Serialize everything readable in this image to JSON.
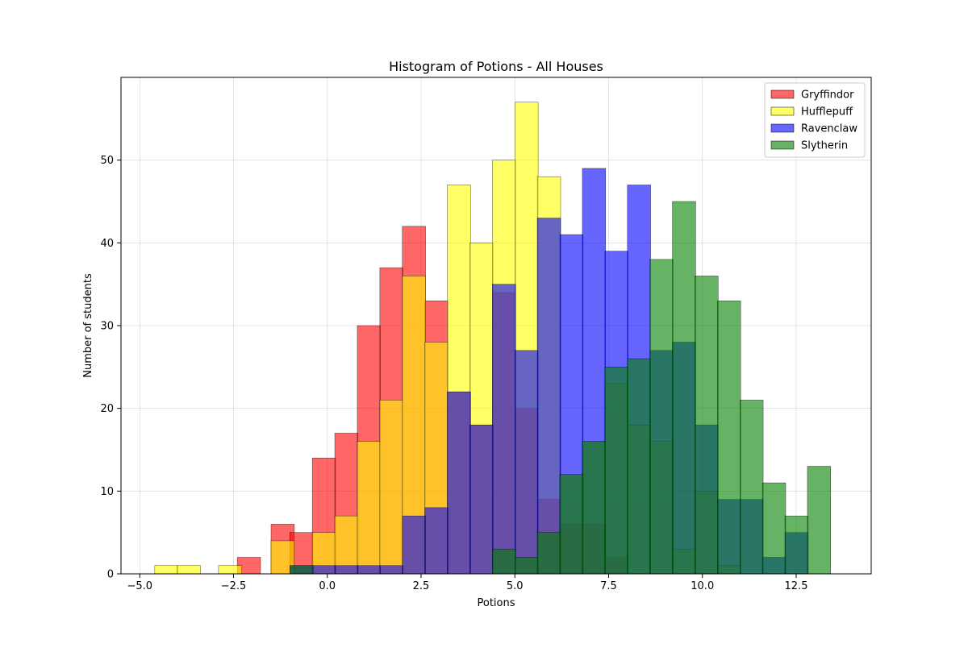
{
  "chart_data": {
    "type": "bar",
    "title": "Histogram of Potions - All Houses",
    "xlabel": "Potions",
    "ylabel": "Number of students",
    "xlim": [
      -5.5,
      14.5
    ],
    "ylim": [
      0,
      60
    ],
    "bin_width": 0.62,
    "grid": true,
    "legend_position": "top-right",
    "xticks": [
      -5.0,
      -2.5,
      0.0,
      2.5,
      5.0,
      7.5,
      10.0,
      12.5
    ],
    "xtick_labels": [
      "−5.0",
      "−2.5",
      "0.0",
      "2.5",
      "5.0",
      "7.5",
      "10.0",
      "12.5"
    ],
    "yticks": [
      0,
      10,
      20,
      30,
      40,
      50
    ],
    "ytick_labels": [
      "0",
      "10",
      "20",
      "30",
      "40",
      "50"
    ],
    "series": [
      {
        "name": "Gryffindor",
        "color": "#ff0000",
        "bins": [
          [
            -2.4,
            2
          ],
          [
            -1.5,
            6
          ],
          [
            -1.0,
            5
          ],
          [
            -0.4,
            14
          ],
          [
            0.2,
            17
          ],
          [
            0.8,
            30
          ],
          [
            1.4,
            37
          ],
          [
            2.0,
            42
          ],
          [
            2.6,
            33
          ],
          [
            3.2,
            22
          ],
          [
            3.8,
            18
          ],
          [
            4.4,
            34
          ],
          [
            5.0,
            20
          ],
          [
            5.6,
            9
          ],
          [
            6.2,
            6
          ],
          [
            6.8,
            6
          ],
          [
            7.4,
            2
          ]
        ]
      },
      {
        "name": "Hufflepuff",
        "color": "#ffff00",
        "bins": [
          [
            -4.6,
            1
          ],
          [
            -4.0,
            1
          ],
          [
            -2.9,
            1
          ],
          [
            -1.5,
            4
          ],
          [
            -0.4,
            5
          ],
          [
            0.2,
            7
          ],
          [
            0.8,
            16
          ],
          [
            1.4,
            21
          ],
          [
            2.0,
            36
          ],
          [
            2.6,
            28
          ],
          [
            3.2,
            47
          ],
          [
            3.8,
            40
          ],
          [
            4.4,
            50
          ],
          [
            5.0,
            57
          ],
          [
            5.6,
            48
          ],
          [
            6.2,
            12
          ],
          [
            6.8,
            16
          ],
          [
            7.4,
            23
          ],
          [
            8.0,
            18
          ],
          [
            8.6,
            16
          ],
          [
            9.2,
            3
          ],
          [
            9.8,
            10
          ],
          [
            10.4,
            1
          ]
        ]
      },
      {
        "name": "Ravenclaw",
        "color": "#0000ff",
        "bins": [
          [
            -1.0,
            1
          ],
          [
            -0.4,
            1
          ],
          [
            0.2,
            1
          ],
          [
            0.8,
            1
          ],
          [
            1.4,
            1
          ],
          [
            2.0,
            7
          ],
          [
            2.6,
            8
          ],
          [
            3.2,
            22
          ],
          [
            3.8,
            18
          ],
          [
            4.4,
            35
          ],
          [
            5.0,
            27
          ],
          [
            5.6,
            43
          ],
          [
            6.2,
            41
          ],
          [
            6.8,
            49
          ],
          [
            7.4,
            39
          ],
          [
            8.0,
            47
          ],
          [
            8.6,
            27
          ],
          [
            9.2,
            28
          ],
          [
            9.8,
            18
          ],
          [
            10.4,
            9
          ],
          [
            11.0,
            9
          ],
          [
            11.6,
            2
          ],
          [
            12.2,
            5
          ]
        ]
      },
      {
        "name": "Slytherin",
        "color": "#008000",
        "bins": [
          [
            -1.0,
            1
          ],
          [
            4.4,
            3
          ],
          [
            5.0,
            2
          ],
          [
            5.6,
            5
          ],
          [
            6.2,
            12
          ],
          [
            6.8,
            16
          ],
          [
            7.4,
            25
          ],
          [
            8.0,
            26
          ],
          [
            8.6,
            38
          ],
          [
            9.2,
            45
          ],
          [
            9.8,
            36
          ],
          [
            10.4,
            33
          ],
          [
            11.0,
            21
          ],
          [
            11.6,
            11
          ],
          [
            12.2,
            7
          ],
          [
            12.8,
            13
          ]
        ]
      }
    ]
  }
}
